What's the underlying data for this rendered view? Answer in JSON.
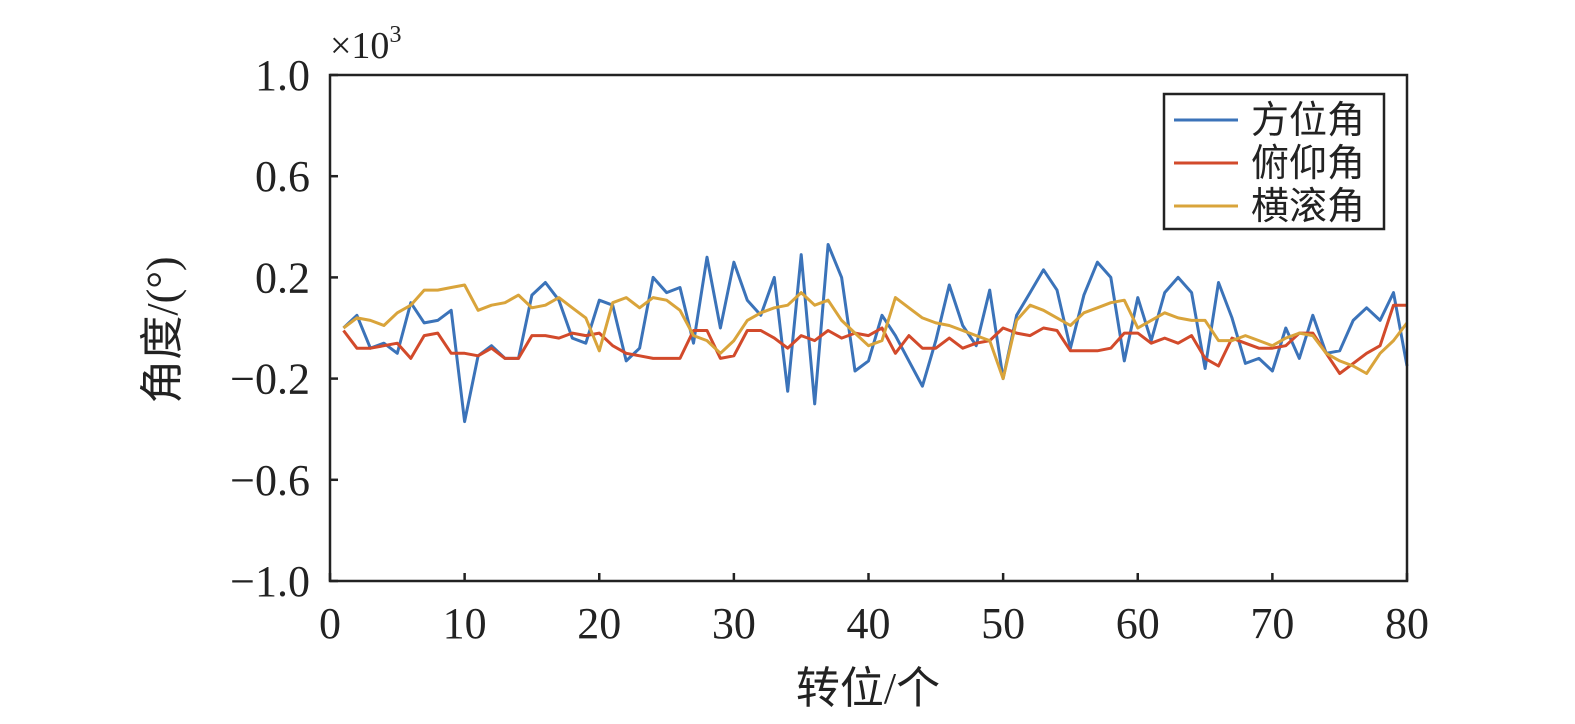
{
  "chart_data": {
    "type": "line",
    "title": "",
    "xlabel": "转位/个",
    "ylabel": "角度/(°)",
    "y_scale_label": "×10",
    "y_scale_exponent": "3",
    "xlim": [
      0,
      80
    ],
    "ylim": [
      -1.0,
      1.0
    ],
    "x_ticks": [
      0,
      10,
      20,
      30,
      40,
      50,
      60,
      70,
      80
    ],
    "y_ticks": [
      -1.0,
      -0.6,
      -0.2,
      0.2,
      0.6,
      1.0
    ],
    "y_tick_labels": [
      "−1.0",
      "−0.6",
      "−0.2",
      "0.2",
      "0.6",
      "1.0"
    ],
    "grid": false,
    "legend_position": "top-right",
    "x": [
      1,
      2,
      3,
      4,
      5,
      6,
      7,
      8,
      9,
      10,
      11,
      12,
      13,
      14,
      15,
      16,
      17,
      18,
      19,
      20,
      21,
      22,
      23,
      24,
      25,
      26,
      27,
      28,
      29,
      30,
      31,
      32,
      33,
      34,
      35,
      36,
      37,
      38,
      39,
      40,
      41,
      42,
      43,
      44,
      45,
      46,
      47,
      48,
      49,
      50,
      51,
      52,
      53,
      54,
      55,
      56,
      57,
      58,
      59,
      60,
      61,
      62,
      63,
      64,
      65,
      66,
      67,
      68,
      69,
      70,
      71,
      72,
      73,
      74,
      75,
      76,
      77,
      78,
      79,
      80
    ],
    "series": [
      {
        "name": "方位角",
        "color": "#3b73b9",
        "values": [
          0.0,
          0.05,
          -0.08,
          -0.06,
          -0.1,
          0.1,
          0.02,
          0.03,
          0.07,
          -0.37,
          -0.11,
          -0.07,
          -0.12,
          -0.12,
          0.13,
          0.18,
          0.11,
          -0.04,
          -0.06,
          0.11,
          0.09,
          -0.13,
          -0.08,
          0.2,
          0.14,
          0.16,
          -0.06,
          0.28,
          0.0,
          0.26,
          0.11,
          0.05,
          0.2,
          -0.25,
          0.29,
          -0.3,
          0.33,
          0.2,
          -0.17,
          -0.13,
          0.05,
          -0.03,
          -0.13,
          -0.23,
          -0.05,
          0.17,
          0.01,
          -0.07,
          0.15,
          -0.2,
          0.05,
          0.14,
          0.23,
          0.15,
          -0.08,
          0.13,
          0.26,
          0.2,
          -0.13,
          0.12,
          -0.05,
          0.14,
          0.2,
          0.14,
          -0.16,
          0.18,
          0.04,
          -0.14,
          -0.12,
          -0.17,
          0.0,
          -0.12,
          0.05,
          -0.1,
          -0.09,
          0.03,
          0.08,
          0.03,
          0.14,
          -0.15
        ]
      },
      {
        "name": "俯仰角",
        "color": "#d24a2b",
        "values": [
          -0.01,
          -0.08,
          -0.08,
          -0.07,
          -0.06,
          -0.12,
          -0.03,
          -0.02,
          -0.1,
          -0.1,
          -0.11,
          -0.08,
          -0.12,
          -0.12,
          -0.03,
          -0.03,
          -0.04,
          -0.02,
          -0.03,
          -0.02,
          -0.07,
          -0.1,
          -0.11,
          -0.12,
          -0.12,
          -0.12,
          -0.01,
          -0.01,
          -0.12,
          -0.11,
          -0.01,
          -0.01,
          -0.04,
          -0.08,
          -0.03,
          -0.05,
          -0.01,
          -0.04,
          -0.02,
          -0.03,
          0.0,
          -0.1,
          -0.03,
          -0.08,
          -0.08,
          -0.04,
          -0.08,
          -0.06,
          -0.05,
          0.0,
          -0.02,
          -0.03,
          0.0,
          -0.01,
          -0.09,
          -0.09,
          -0.09,
          -0.08,
          -0.02,
          -0.02,
          -0.06,
          -0.04,
          -0.06,
          -0.03,
          -0.12,
          -0.15,
          -0.04,
          -0.06,
          -0.08,
          -0.08,
          -0.07,
          -0.02,
          -0.02,
          -0.1,
          -0.18,
          -0.14,
          -0.1,
          -0.07,
          0.09,
          0.09
        ]
      },
      {
        "name": "横滚角",
        "color": "#d9a43b",
        "values": [
          0.0,
          0.04,
          0.03,
          0.01,
          0.06,
          0.09,
          0.15,
          0.15,
          0.16,
          0.17,
          0.07,
          0.09,
          0.1,
          0.13,
          0.08,
          0.09,
          0.12,
          0.08,
          0.04,
          -0.09,
          0.1,
          0.12,
          0.08,
          0.12,
          0.11,
          0.07,
          -0.03,
          -0.05,
          -0.1,
          -0.05,
          0.03,
          0.06,
          0.08,
          0.09,
          0.14,
          0.09,
          0.11,
          0.03,
          -0.02,
          -0.07,
          -0.05,
          0.12,
          0.08,
          0.04,
          0.02,
          0.01,
          -0.01,
          -0.03,
          -0.05,
          -0.2,
          0.03,
          0.09,
          0.07,
          0.04,
          0.01,
          0.06,
          0.08,
          0.1,
          0.11,
          0.0,
          0.03,
          0.06,
          0.04,
          0.03,
          0.03,
          -0.05,
          -0.05,
          -0.03,
          -0.05,
          -0.07,
          -0.04,
          -0.02,
          -0.03,
          -0.1,
          -0.13,
          -0.15,
          -0.18,
          -0.1,
          -0.05,
          0.02
        ]
      }
    ]
  }
}
